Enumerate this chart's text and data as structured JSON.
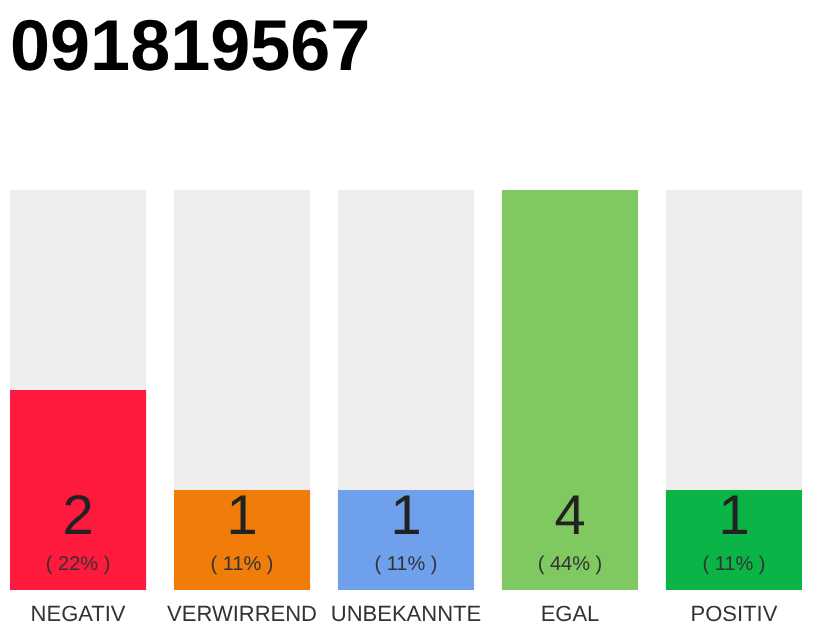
{
  "chart_data": {
    "type": "bar",
    "title": "091819567",
    "categories": [
      "NEGATIV",
      "VERWIRREND",
      "UNBEKANNTE",
      "EGAL",
      "POSITIV"
    ],
    "stacked": true,
    "ylim": [
      0,
      4
    ],
    "tick_labels": "x",
    "series": [
      {
        "colors": [
          "#fd1a3c",
          "#f07d0a",
          "#6ea0eb",
          "#80c860",
          "#0ab446"
        ],
        "values": [
          2,
          1,
          1,
          4,
          1
        ],
        "value_labels": [
          "2",
          "1",
          "1",
          "4",
          "1"
        ]
      },
      {
        "color": "#eeeeee",
        "values": [
          2,
          3,
          3,
          0,
          3
        ]
      }
    ],
    "annotations": [
      {
        "text": "( 22% )",
        "x": "NEGATIV",
        "y": 0
      },
      {
        "text": "( 11% )",
        "x": "VERWIRREND",
        "y": 0
      },
      {
        "text": "( 11% )",
        "x": "UNBEKANNTE",
        "y": 0
      },
      {
        "text": "( 44% )",
        "x": "EGAL",
        "y": 0
      },
      {
        "text": "( 11% )",
        "x": "POSITIV",
        "y": 0
      }
    ]
  }
}
